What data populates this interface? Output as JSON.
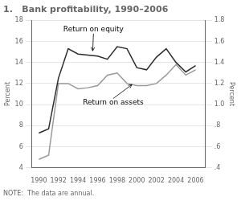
{
  "chart_data": {
    "type": "line",
    "title": "1.   Bank profitability, 1990–2006",
    "note": "NOTE:  The data are annual.",
    "ylabel": "Percent",
    "y2label": "Percent",
    "x": [
      1990,
      1991,
      1992,
      1993,
      1994,
      1995,
      1996,
      1997,
      1998,
      1999,
      2000,
      2001,
      2002,
      2003,
      2004,
      2005,
      2006
    ],
    "series": [
      {
        "name": "Return on equity",
        "color": "#2b2b2b",
        "values": [
          7.3,
          7.7,
          12.5,
          15.3,
          14.8,
          14.7,
          14.6,
          14.3,
          15.5,
          15.3,
          13.5,
          13.3,
          14.5,
          15.3,
          14.0,
          13.1,
          13.7
        ]
      },
      {
        "name": "Return on assets",
        "color": "#999999",
        "values": [
          4.8,
          5.2,
          12.0,
          12.0,
          11.5,
          11.6,
          11.8,
          12.8,
          13.0,
          12.0,
          11.8,
          11.8,
          12.0,
          12.8,
          13.8,
          12.8,
          13.3
        ]
      }
    ],
    "xlim": [
      1989.3,
      2007.0
    ],
    "xticks": [
      1990,
      1992,
      1994,
      1996,
      1998,
      2000,
      2002,
      2004,
      2006
    ],
    "ylim": [
      4,
      18
    ],
    "yticks": [
      4,
      6,
      8,
      10,
      12,
      14,
      16,
      18
    ],
    "y2lim": [
      0.4,
      1.8
    ],
    "y2ticks": [
      {
        "value": 0.4,
        "label": ".4"
      },
      {
        "value": 0.6,
        "label": ".6"
      },
      {
        "value": 0.8,
        "label": ".8"
      },
      {
        "value": 1.0,
        "label": "1.0"
      },
      1.2,
      1.4,
      1.6,
      1.8
    ],
    "grid": true,
    "annotations": [
      {
        "text": "Return on equity",
        "xy": [
          1995.5,
          15.1
        ],
        "xytext": [
          1992.5,
          16.8
        ]
      },
      {
        "text": "Return on assets",
        "xy": [
          1999.5,
          11.9
        ],
        "xytext": [
          1994.5,
          10.5
        ]
      }
    ]
  }
}
